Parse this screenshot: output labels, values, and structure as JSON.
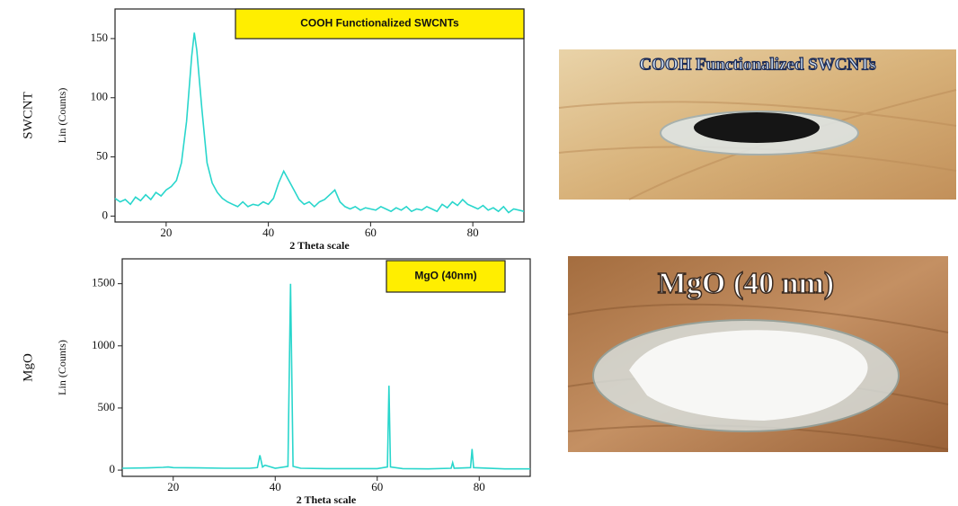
{
  "chart_data": [
    {
      "type": "line",
      "title": "COOH Functionalized SWCNTs",
      "row_label": "SWCNT",
      "ylabel": "Lin (Counts)",
      "xlabel": "2 Theta scale",
      "x": [
        10,
        11,
        12,
        13,
        14,
        15,
        16,
        17,
        18,
        19,
        20,
        21,
        22,
        23,
        24,
        25,
        25.5,
        26,
        27,
        28,
        29,
        30,
        31,
        32,
        33,
        34,
        35,
        36,
        37,
        38,
        39,
        40,
        41,
        42,
        43,
        44,
        45,
        46,
        47,
        48,
        49,
        50,
        51,
        52,
        53,
        54,
        55,
        56,
        57,
        58,
        59,
        60,
        61,
        62,
        63,
        64,
        65,
        66,
        67,
        68,
        69,
        70,
        71,
        72,
        73,
        74,
        75,
        76,
        77,
        78,
        79,
        80,
        81,
        82,
        83,
        84,
        85,
        86,
        87,
        88,
        89,
        90
      ],
      "series": [
        {
          "color": "#29d6cc",
          "values": [
            15,
            12,
            14,
            10,
            16,
            13,
            18,
            14,
            20,
            17,
            22,
            25,
            30,
            45,
            80,
            135,
            155,
            140,
            90,
            45,
            28,
            20,
            15,
            12,
            10,
            8,
            12,
            8,
            10,
            9,
            12,
            10,
            15,
            28,
            38,
            30,
            22,
            14,
            10,
            12,
            8,
            12,
            14,
            18,
            22,
            12,
            8,
            6,
            8,
            5,
            7,
            6,
            5,
            8,
            6,
            4,
            7,
            5,
            8,
            4,
            6,
            5,
            8,
            6,
            4,
            10,
            7,
            12,
            9,
            14,
            10,
            8,
            6,
            9,
            5,
            7,
            4,
            8,
            3,
            6,
            5,
            4
          ]
        }
      ],
      "xlim": [
        10,
        90
      ],
      "ylim": [
        -5,
        175
      ],
      "xticks": [
        20,
        40,
        60,
        80
      ],
      "yticks": [
        0,
        50,
        100,
        150
      ]
    },
    {
      "type": "line",
      "title": "MgO (40nm)",
      "row_label": "MgO",
      "ylabel": "Lin (Counts)",
      "xlabel": "2 Theta scale",
      "x": [
        10,
        15,
        18,
        19,
        20,
        25,
        30,
        35,
        36.5,
        37,
        37.5,
        38,
        40,
        42.5,
        43,
        43.5,
        45,
        50,
        55,
        60,
        62,
        62.3,
        62.6,
        65,
        70,
        74.5,
        74.8,
        75.1,
        78.3,
        78.6,
        78.9,
        85,
        90
      ],
      "series": [
        {
          "color": "#29d6cc",
          "values": [
            15,
            18,
            22,
            25,
            20,
            18,
            15,
            15,
            20,
            120,
            25,
            40,
            15,
            30,
            1500,
            30,
            15,
            12,
            12,
            12,
            25,
            680,
            25,
            12,
            10,
            15,
            60,
            15,
            20,
            170,
            20,
            10,
            10
          ]
        }
      ],
      "xlim": [
        10,
        90
      ],
      "ylim": [
        -50,
        1700
      ],
      "xticks": [
        20,
        40,
        60,
        80
      ],
      "yticks": [
        0,
        500,
        1000,
        1500
      ]
    }
  ],
  "photos": [
    {
      "caption": "COOH Functionalized SWCNTs"
    },
    {
      "caption": "MgO (40 nm)"
    }
  ]
}
